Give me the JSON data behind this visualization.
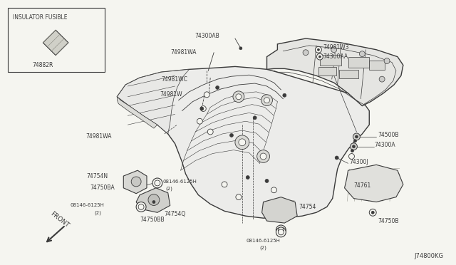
{
  "bg_color": "#f5f5f0",
  "diagram_color": "#3a3a3a",
  "figure_id": "J74800KG",
  "inset_label": "INSULATOR FUSIBLE",
  "inset_part": "74882R",
  "line_color": "#404040"
}
